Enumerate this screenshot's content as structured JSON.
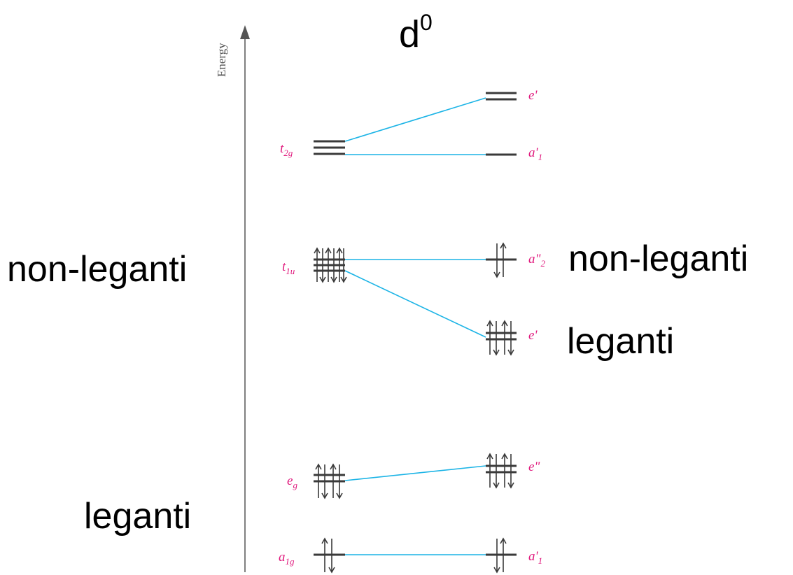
{
  "title_base": "d",
  "title_super": "0",
  "axis_label": "Energy",
  "left_labels": {
    "nonbonding": "non-leganti",
    "bonding": "leganti"
  },
  "right_labels": {
    "nonbonding": "non-leganti",
    "bonding": "leganti"
  },
  "left_levels": [
    {
      "id": "t2g",
      "sym": "t",
      "sub": "2g",
      "degeneracy": 3,
      "electrons": 0
    },
    {
      "id": "t1u",
      "sym": "t",
      "sub": "1u",
      "degeneracy": 3,
      "electrons": 6
    },
    {
      "id": "eg",
      "sym": "e",
      "sub": "g",
      "degeneracy": 2,
      "electrons": 4
    },
    {
      "id": "a1g",
      "sym": "a",
      "sub": "1g",
      "degeneracy": 1,
      "electrons": 2
    }
  ],
  "right_levels": [
    {
      "id": "e-prime-top",
      "sym": "e'",
      "sub": "",
      "degeneracy": 2,
      "electrons": 0
    },
    {
      "id": "a1-prime-top",
      "sym": "a'",
      "sub": "1",
      "degeneracy": 1,
      "electrons": 0
    },
    {
      "id": "a2-dprime",
      "sym": "a\"",
      "sub": "2",
      "degeneracy": 1,
      "electrons": 2
    },
    {
      "id": "e-prime-mid",
      "sym": "e'",
      "sub": "",
      "degeneracy": 2,
      "electrons": 4
    },
    {
      "id": "e-dprime",
      "sym": "e\"",
      "sub": "",
      "degeneracy": 2,
      "electrons": 4
    },
    {
      "id": "a1-prime-bottom",
      "sym": "a'",
      "sub": "1",
      "degeneracy": 1,
      "electrons": 2
    }
  ],
  "colors": {
    "connector": "#1cb4e6",
    "symmetry_label": "#e0197d",
    "level": "#3a3a3a"
  }
}
